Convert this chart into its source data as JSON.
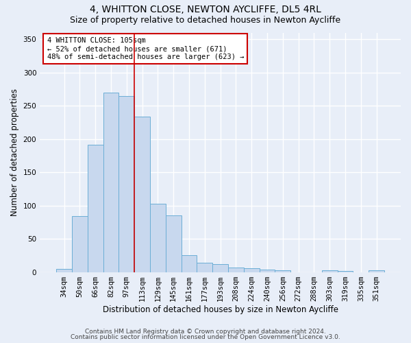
{
  "title1": "4, WHITTON CLOSE, NEWTON AYCLIFFE, DL5 4RL",
  "title2": "Size of property relative to detached houses in Newton Aycliffe",
  "xlabel": "Distribution of detached houses by size in Newton Aycliffe",
  "ylabel": "Number of detached properties",
  "categories": [
    "34sqm",
    "50sqm",
    "66sqm",
    "82sqm",
    "97sqm",
    "113sqm",
    "129sqm",
    "145sqm",
    "161sqm",
    "177sqm",
    "193sqm",
    "208sqm",
    "224sqm",
    "240sqm",
    "256sqm",
    "272sqm",
    "288sqm",
    "303sqm",
    "319sqm",
    "335sqm",
    "351sqm"
  ],
  "values": [
    5,
    84,
    191,
    270,
    265,
    234,
    103,
    85,
    25,
    14,
    12,
    7,
    6,
    4,
    3,
    0,
    0,
    3,
    2,
    0,
    3
  ],
  "bar_color": "#c8d8ee",
  "bar_edge_color": "#6baed6",
  "vline_x": 4.5,
  "vline_color": "#cc0000",
  "annotation_text": "4 WHITTON CLOSE: 105sqm\n← 52% of detached houses are smaller (671)\n48% of semi-detached houses are larger (623) →",
  "annotation_box_color": "#ffffff",
  "annotation_box_edge": "#cc0000",
  "footnote1": "Contains HM Land Registry data © Crown copyright and database right 2024.",
  "footnote2": "Contains public sector information licensed under the Open Government Licence v3.0.",
  "ylim": [
    0,
    360
  ],
  "yticks": [
    0,
    50,
    100,
    150,
    200,
    250,
    300,
    350
  ],
  "bg_color": "#e8eef8",
  "grid_color": "#ffffff",
  "title1_fontsize": 10,
  "title2_fontsize": 9,
  "xlabel_fontsize": 8.5,
  "ylabel_fontsize": 8.5,
  "tick_fontsize": 7.5,
  "annot_fontsize": 7.5,
  "footnote_fontsize": 6.5
}
